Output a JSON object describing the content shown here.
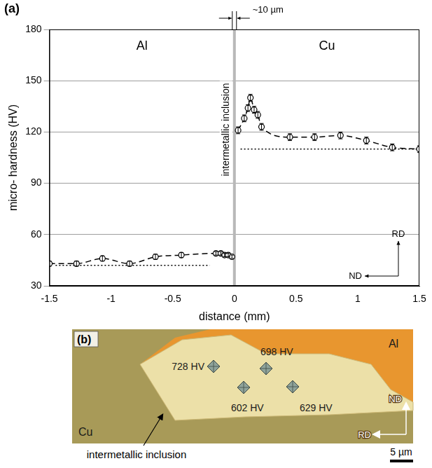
{
  "chart_data": {
    "type": "scatter",
    "title": "(a)",
    "x_label": "distance (mm)",
    "y_label": "micro- hardness (HV)",
    "xlim": [
      -1.5,
      1.5
    ],
    "xticks": [
      -1.5,
      -1,
      -0.5,
      0,
      0.5,
      1,
      1.5
    ],
    "ylim": [
      30,
      180
    ],
    "yticks": [
      30,
      60,
      90,
      120,
      150,
      180
    ],
    "grid": "y",
    "regions": [
      "Al",
      "Cu"
    ],
    "interface": {
      "x": 0,
      "label": "intermetallic inclusion",
      "width_label": "~10 µm"
    },
    "orientation": {
      "vertical": "RD",
      "horizontal": "ND"
    },
    "series": [
      {
        "x": [
          -1.5,
          -1.28,
          -1.07,
          -0.85,
          -0.64,
          -0.43,
          -0.15,
          -0.11,
          -0.08,
          -0.05,
          -0.02
        ],
        "values": [
          43,
          43,
          46,
          43,
          47,
          48,
          49,
          49,
          48,
          48,
          47
        ],
        "errors": [
          1.5,
          1.5,
          1.5,
          1.5,
          1.5,
          1.5,
          1,
          1,
          1,
          1,
          1
        ],
        "color": "#000000",
        "marker": "circle",
        "line_style": "dashed"
      },
      {
        "x": [
          0.03,
          0.08,
          0.11,
          0.13,
          0.16,
          0.19,
          0.22,
          0.45,
          0.65,
          0.86,
          1.07,
          1.28,
          1.5
        ],
        "values": [
          121,
          128,
          134,
          140,
          133,
          130,
          123,
          117,
          117,
          118,
          115,
          111,
          110
        ],
        "errors": [
          2,
          2,
          2,
          2,
          2,
          2,
          2,
          2,
          2,
          2,
          2,
          2,
          2
        ],
        "color": "#000000",
        "marker": "circle",
        "line_style": "dashed"
      },
      {
        "x": [
          -1.45,
          -0.2
        ],
        "values": [
          42,
          42
        ],
        "color": "#000000",
        "marker": "none",
        "line_style": "dotted"
      },
      {
        "x": [
          0.05,
          1.5
        ],
        "values": [
          110,
          110
        ],
        "color": "#000000",
        "marker": "none",
        "line_style": "dotted"
      }
    ]
  },
  "image_panel": {
    "title": "(b)",
    "regions": [
      "Al",
      "Cu"
    ],
    "inclusion_label": "intermetallic inclusion",
    "indents": [
      "728 HV",
      "698 HV",
      "602 HV",
      "629 HV"
    ],
    "orientation": {
      "vertical": "ND",
      "horizontal": "RD"
    },
    "scale_bar": "5 µm"
  }
}
